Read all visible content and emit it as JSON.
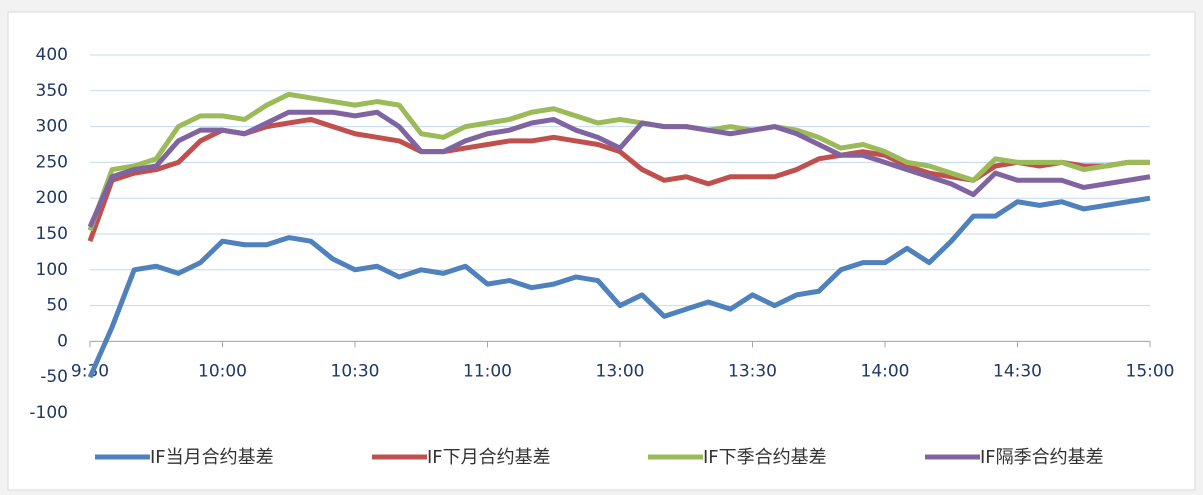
{
  "chart_data": {
    "type": "line",
    "categories": [
      "9:30",
      null,
      null,
      null,
      null,
      null,
      "10:00",
      null,
      null,
      null,
      null,
      null,
      "10:30",
      null,
      null,
      null,
      null,
      null,
      "11:00",
      null,
      null,
      null,
      null,
      null,
      "13:00",
      null,
      null,
      null,
      null,
      null,
      "13:30",
      null,
      null,
      null,
      null,
      null,
      "14:00",
      null,
      null,
      null,
      null,
      null,
      "14:30",
      null,
      null,
      null,
      null,
      null,
      "15:00"
    ],
    "ylim": [
      -100,
      400
    ],
    "yticks": [
      -100,
      -50,
      0,
      50,
      100,
      150,
      200,
      250,
      300,
      350,
      400
    ],
    "grid": true,
    "series": [
      {
        "name": "IF当月合约基差",
        "color": "#4f81bd",
        "values": [
          -50,
          20,
          100,
          105,
          95,
          110,
          140,
          135,
          135,
          145,
          140,
          115,
          100,
          105,
          90,
          100,
          95,
          105,
          80,
          85,
          75,
          80,
          90,
          85,
          50,
          65,
          35,
          45,
          55,
          45,
          65,
          50,
          65,
          70,
          100,
          110,
          110,
          130,
          110,
          140,
          175,
          175,
          195,
          190,
          195,
          185,
          190,
          195,
          200
        ]
      },
      {
        "name": "IF下月合约基差",
        "color": "#c0504d",
        "values": [
          140,
          225,
          235,
          240,
          250,
          280,
          295,
          290,
          300,
          305,
          310,
          300,
          290,
          285,
          280,
          265,
          265,
          270,
          275,
          280,
          280,
          285,
          280,
          275,
          265,
          240,
          225,
          230,
          220,
          230,
          230,
          230,
          240,
          255,
          260,
          265,
          260,
          245,
          235,
          230,
          225,
          245,
          250,
          245,
          250,
          245,
          245,
          250,
          250
        ]
      },
      {
        "name": "IF下季合约基差",
        "color": "#9bbb59",
        "values": [
          155,
          240,
          245,
          255,
          300,
          315,
          315,
          310,
          330,
          345,
          340,
          335,
          330,
          335,
          330,
          290,
          285,
          300,
          305,
          310,
          320,
          325,
          315,
          305,
          310,
          305,
          300,
          300,
          295,
          300,
          295,
          300,
          295,
          285,
          270,
          275,
          265,
          250,
          245,
          235,
          225,
          255,
          250,
          250,
          250,
          240,
          245,
          250,
          250
        ]
      },
      {
        "name": "IF隔季合约基差",
        "color": "#8064a2",
        "values": [
          160,
          230,
          240,
          245,
          280,
          295,
          295,
          290,
          305,
          320,
          320,
          320,
          315,
          320,
          300,
          265,
          265,
          280,
          290,
          295,
          305,
          310,
          295,
          285,
          270,
          305,
          300,
          300,
          295,
          290,
          295,
          300,
          290,
          275,
          260,
          260,
          250,
          240,
          230,
          220,
          205,
          235,
          225,
          225,
          225,
          215,
          220,
          225,
          230
        ]
      }
    ]
  }
}
